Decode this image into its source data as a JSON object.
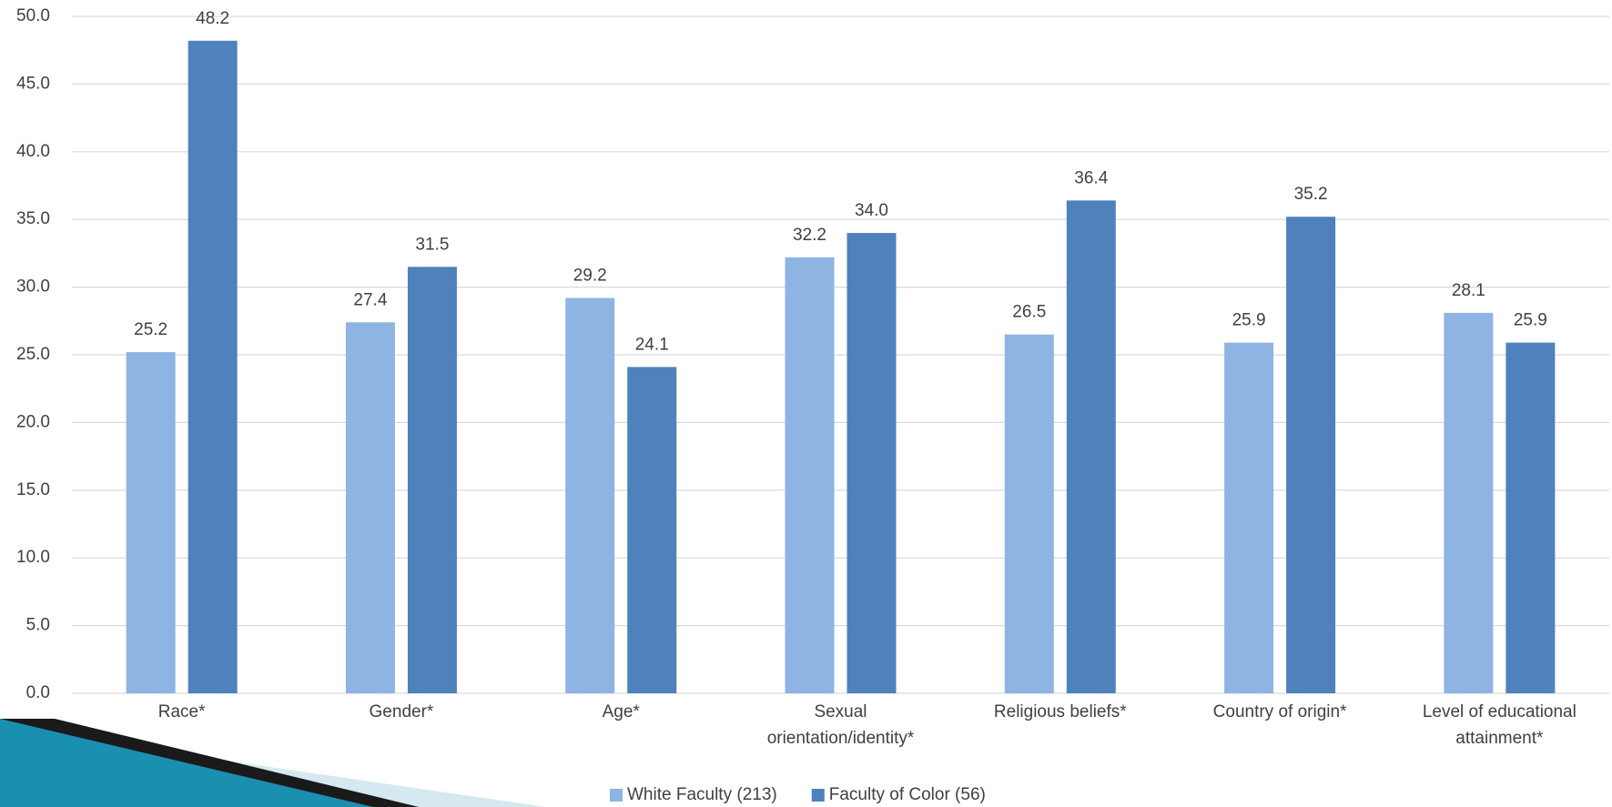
{
  "chart_data": {
    "type": "bar",
    "categories": [
      "Race*",
      "Gender*",
      "Age*",
      "Sexual orientation/identity*",
      "Religious beliefs*",
      "Country of origin*",
      "Level of educational attainment*"
    ],
    "series": [
      {
        "name": "White Faculty (213)",
        "color": "#8eb4e3",
        "values": [
          25.2,
          27.4,
          29.2,
          32.2,
          26.5,
          25.9,
          28.1
        ],
        "value_labels": [
          "25.2",
          "27.4",
          "29.2",
          "32.2",
          "26.5",
          "25.9",
          "28.1"
        ]
      },
      {
        "name": "Faculty of Color (56)",
        "color": "#4f81bd",
        "values": [
          48.2,
          31.5,
          24.1,
          34.0,
          36.4,
          35.2,
          25.9
        ],
        "value_labels": [
          "48.2",
          "31.5",
          "24.1",
          "34.0",
          "36.4",
          "35.2",
          "25.9"
        ]
      }
    ],
    "ylim": [
      0,
      50
    ],
    "yticks": [
      {
        "value": 0,
        "label": "0.0"
      },
      {
        "value": 5,
        "label": "5.0"
      },
      {
        "value": 10,
        "label": "10.0"
      },
      {
        "value": 15,
        "label": "15.0"
      },
      {
        "value": 20,
        "label": "20.0"
      },
      {
        "value": 25,
        "label": "25.0"
      },
      {
        "value": 30,
        "label": "30.0"
      },
      {
        "value": 35,
        "label": "35.0"
      },
      {
        "value": 40,
        "label": "40.0"
      },
      {
        "value": 45,
        "label": "45.0"
      },
      {
        "value": 50,
        "label": "50.0"
      }
    ],
    "grid": true,
    "legend": "bottom"
  }
}
